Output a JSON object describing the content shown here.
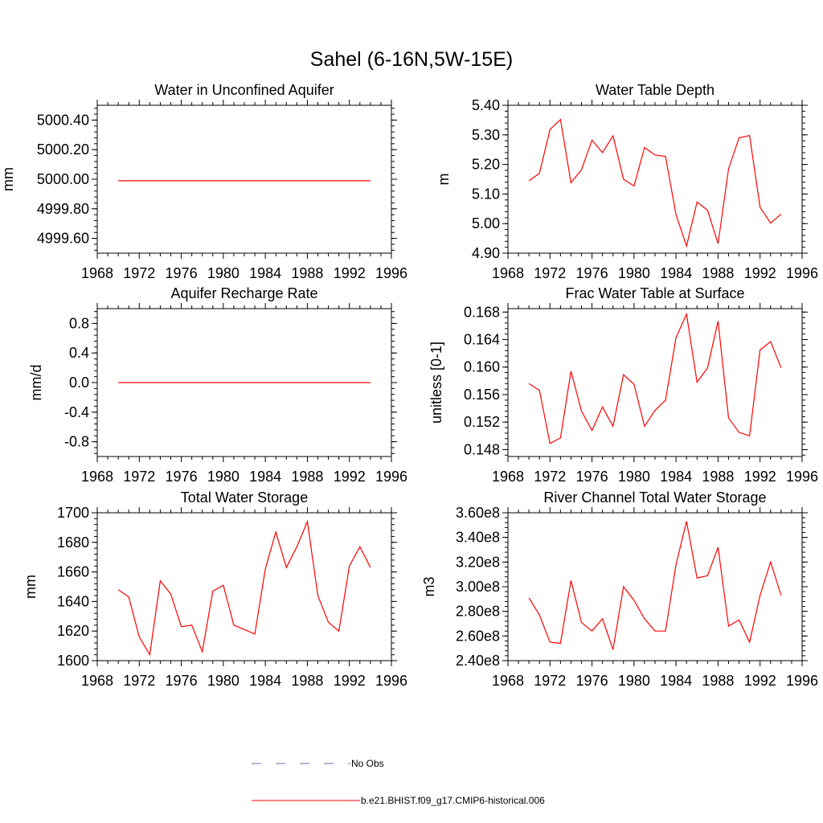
{
  "figure": {
    "title": "Sahel (6-16N,5W-15E)"
  },
  "legend": {
    "placement": "bottom-center",
    "items": [
      {
        "label": "No Obs",
        "color": "#6e6ea8",
        "style": "dashed"
      },
      {
        "label": "b.e21.BHIST.f09_g17.CMIP6-historical.006",
        "color": "#ff0000",
        "style": "solid"
      }
    ]
  },
  "chart_data": [
    {
      "type": "line",
      "title": "Water in Unconfined Aquifer",
      "ylabel": "mm",
      "xlim": [
        1968,
        1996
      ],
      "xticks": [
        1968,
        1972,
        1976,
        1980,
        1984,
        1988,
        1992,
        1996
      ],
      "xtick_labels": [
        "1968",
        "1972",
        "1976",
        "1980",
        "1984",
        "1988",
        "1992",
        "1996"
      ],
      "ylim": [
        4999.5,
        5000.5
      ],
      "yticks": [
        4999.6,
        4999.8,
        5000.0,
        5000.2,
        5000.4
      ],
      "ytick_labels": [
        "4999.60",
        "4999.80",
        "5000.00",
        "5000.20",
        "5000.40"
      ],
      "x": [
        1970,
        1971,
        1972,
        1973,
        1974,
        1975,
        1976,
        1977,
        1978,
        1979,
        1980,
        1981,
        1982,
        1983,
        1984,
        1985,
        1986,
        1987,
        1988,
        1989,
        1990,
        1991,
        1992,
        1993,
        1994
      ],
      "series": [
        {
          "color": "#ff0000",
          "values": [
            4999.99,
            4999.99,
            4999.99,
            4999.99,
            4999.99,
            4999.99,
            4999.99,
            4999.99,
            4999.99,
            4999.99,
            4999.99,
            4999.99,
            4999.99,
            4999.99,
            4999.99,
            4999.99,
            4999.99,
            4999.99,
            4999.99,
            4999.99,
            4999.99,
            4999.99,
            4999.99,
            4999.99,
            4999.99
          ]
        }
      ]
    },
    {
      "type": "line",
      "title": "Water Table Depth",
      "ylabel": "m",
      "xlim": [
        1968,
        1996
      ],
      "xticks": [
        1968,
        1972,
        1976,
        1980,
        1984,
        1988,
        1992,
        1996
      ],
      "xtick_labels": [
        "1968",
        "1972",
        "1976",
        "1980",
        "1984",
        "1988",
        "1992",
        "1996"
      ],
      "ylim": [
        4.9,
        5.4
      ],
      "yticks": [
        4.9,
        5.0,
        5.1,
        5.2,
        5.3,
        5.4
      ],
      "ytick_labels": [
        "4.90",
        "5.00",
        "5.10",
        "5.20",
        "5.30",
        "5.40"
      ],
      "x": [
        1970,
        1971,
        1972,
        1973,
        1974,
        1975,
        1976,
        1977,
        1978,
        1979,
        1980,
        1981,
        1982,
        1983,
        1984,
        1985,
        1986,
        1987,
        1988,
        1989,
        1990,
        1991,
        1992,
        1993,
        1994
      ],
      "series": [
        {
          "color": "#ff0000",
          "values": [
            5.145,
            5.17,
            5.318,
            5.352,
            5.138,
            5.182,
            5.282,
            5.24,
            5.297,
            5.15,
            5.127,
            5.257,
            5.232,
            5.227,
            5.03,
            4.924,
            5.073,
            5.045,
            4.932,
            5.185,
            5.29,
            5.298,
            5.055,
            5.002,
            5.032
          ]
        }
      ]
    },
    {
      "type": "line",
      "title": "Aquifer Recharge Rate",
      "ylabel": "mm/d",
      "xlim": [
        1968,
        1996
      ],
      "xticks": [
        1968,
        1972,
        1976,
        1980,
        1984,
        1988,
        1992,
        1996
      ],
      "xtick_labels": [
        "1968",
        "1972",
        "1976",
        "1980",
        "1984",
        "1988",
        "1992",
        "1996"
      ],
      "ylim": [
        -1.0,
        1.0
      ],
      "yticks": [
        -0.8,
        -0.4,
        0.0,
        0.4,
        0.8
      ],
      "ytick_labels": [
        "-0.8",
        "-0.4",
        "0.0",
        "0.4",
        "0.8"
      ],
      "x": [
        1970,
        1971,
        1972,
        1973,
        1974,
        1975,
        1976,
        1977,
        1978,
        1979,
        1980,
        1981,
        1982,
        1983,
        1984,
        1985,
        1986,
        1987,
        1988,
        1989,
        1990,
        1991,
        1992,
        1993,
        1994
      ],
      "series": [
        {
          "color": "#ff0000",
          "values": [
            0,
            0,
            0,
            0,
            0,
            0,
            0,
            0,
            0,
            0,
            0,
            0,
            0,
            0,
            0,
            0,
            0,
            0,
            0,
            0,
            0,
            0,
            0,
            0,
            0
          ]
        }
      ]
    },
    {
      "type": "line",
      "title": "Frac Water Table at Surface",
      "ylabel": "unitless [0-1]",
      "xlim": [
        1968,
        1996
      ],
      "xticks": [
        1968,
        1972,
        1976,
        1980,
        1984,
        1988,
        1992,
        1996
      ],
      "xtick_labels": [
        "1968",
        "1972",
        "1976",
        "1980",
        "1984",
        "1988",
        "1992",
        "1996"
      ],
      "ylim": [
        0.147,
        0.1685
      ],
      "yticks": [
        0.148,
        0.152,
        0.156,
        0.16,
        0.164,
        0.168
      ],
      "ytick_labels": [
        "0.148",
        "0.152",
        "0.156",
        "0.160",
        "0.164",
        "0.168"
      ],
      "x": [
        1970,
        1971,
        1972,
        1973,
        1974,
        1975,
        1976,
        1977,
        1978,
        1979,
        1980,
        1981,
        1982,
        1983,
        1984,
        1985,
        1986,
        1987,
        1988,
        1989,
        1990,
        1991,
        1992,
        1993,
        1994
      ],
      "series": [
        {
          "color": "#ff0000",
          "values": [
            0.1576,
            0.1566,
            0.1489,
            0.1497,
            0.1594,
            0.1536,
            0.1508,
            0.1542,
            0.1514,
            0.1589,
            0.1575,
            0.1514,
            0.1537,
            0.1552,
            0.1643,
            0.1677,
            0.1578,
            0.1599,
            0.1667,
            0.1526,
            0.1505,
            0.15,
            0.1625,
            0.1637,
            0.1599
          ]
        }
      ]
    },
    {
      "type": "line",
      "title": "Total Water Storage",
      "ylabel": "mm",
      "xlim": [
        1968,
        1996
      ],
      "xticks": [
        1968,
        1972,
        1976,
        1980,
        1984,
        1988,
        1992,
        1996
      ],
      "xtick_labels": [
        "1968",
        "1972",
        "1976",
        "1980",
        "1984",
        "1988",
        "1992",
        "1996"
      ],
      "ylim": [
        1600,
        1700
      ],
      "yticks": [
        1600,
        1620,
        1640,
        1660,
        1680,
        1700
      ],
      "ytick_labels": [
        "1600",
        "1620",
        "1640",
        "1660",
        "1680",
        "1700"
      ],
      "x": [
        1970,
        1971,
        1972,
        1973,
        1974,
        1975,
        1976,
        1977,
        1978,
        1979,
        1980,
        1981,
        1982,
        1983,
        1984,
        1985,
        1986,
        1987,
        1988,
        1989,
        1990,
        1991,
        1992,
        1993,
        1994
      ],
      "series": [
        {
          "color": "#ff0000",
          "values": [
            1648,
            1643,
            1616,
            1604,
            1654,
            1645,
            1623,
            1624,
            1606,
            1647,
            1651,
            1624,
            1621,
            1618,
            1662,
            1687,
            1663,
            1677,
            1694,
            1644,
            1626,
            1620,
            1664,
            1677,
            1663
          ]
        }
      ]
    },
    {
      "type": "line",
      "title": "River Channel Total Water Storage",
      "ylabel": "m3",
      "xlim": [
        1968,
        1996
      ],
      "xticks": [
        1968,
        1972,
        1976,
        1980,
        1984,
        1988,
        1992,
        1996
      ],
      "xtick_labels": [
        "1968",
        "1972",
        "1976",
        "1980",
        "1984",
        "1988",
        "1992",
        "1996"
      ],
      "ylim": [
        240000000,
        360000000
      ],
      "yticks": [
        240000000,
        260000000,
        280000000,
        300000000,
        320000000,
        340000000,
        360000000
      ],
      "ytick_labels": [
        "2.40e8",
        "2.60e8",
        "2.80e8",
        "3.00e8",
        "3.20e8",
        "3.40e8",
        "3.60e8"
      ],
      "x": [
        1970,
        1971,
        1972,
        1973,
        1974,
        1975,
        1976,
        1977,
        1978,
        1979,
        1980,
        1981,
        1982,
        1983,
        1984,
        1985,
        1986,
        1987,
        1988,
        1989,
        1990,
        1991,
        1992,
        1993,
        1994
      ],
      "series": [
        {
          "color": "#ff0000",
          "values": [
            291000000,
            277000000,
            255000000,
            254000000,
            305000000,
            271000000,
            264000000,
            274000000,
            249000000,
            300000000,
            289000000,
            274000000,
            264000000,
            264000000,
            318000000,
            353000000,
            307000000,
            309000000,
            332000000,
            268000000,
            273000000,
            255000000,
            293000000,
            320000000,
            293000000
          ]
        }
      ]
    }
  ]
}
